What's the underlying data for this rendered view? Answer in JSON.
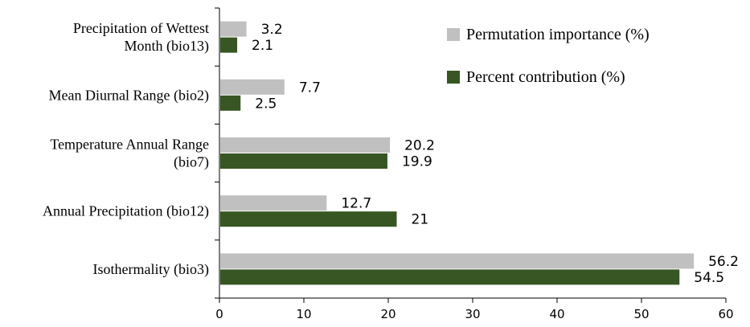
{
  "chart_data": {
    "type": "bar",
    "orientation": "horizontal",
    "categories": [
      [
        "Precipitation of Wettest",
        "Month (bio13)"
      ],
      [
        "Mean Diurnal Range (bio2)"
      ],
      [
        "Temperature Annual Range",
        "(bio7)"
      ],
      [
        "Annual Precipitation (bio12)"
      ],
      [
        "Isothermality (bio3)"
      ]
    ],
    "series": [
      {
        "name": "Permutation importance (%)",
        "color": "#c0c0c0",
        "values": [
          3.2,
          7.7,
          20.2,
          12.7,
          56.2
        ],
        "labels": [
          "3.2",
          "7.7",
          "20.2",
          "12.7",
          "56.2"
        ]
      },
      {
        "name": "Percent contribution (%)",
        "color": "#375623",
        "values": [
          2.1,
          2.5,
          19.9,
          21,
          54.5
        ],
        "labels": [
          "2.1",
          "2.5",
          "19.9",
          "21",
          "54.5"
        ]
      }
    ],
    "xlim": [
      0,
      60
    ],
    "xticks": [
      "0",
      "10",
      "20",
      "30",
      "40",
      "50",
      "60"
    ],
    "xlabel": "",
    "ylabel": "",
    "title": "",
    "grid": false,
    "legend_position": "top-right",
    "axis_color": "#000000"
  }
}
